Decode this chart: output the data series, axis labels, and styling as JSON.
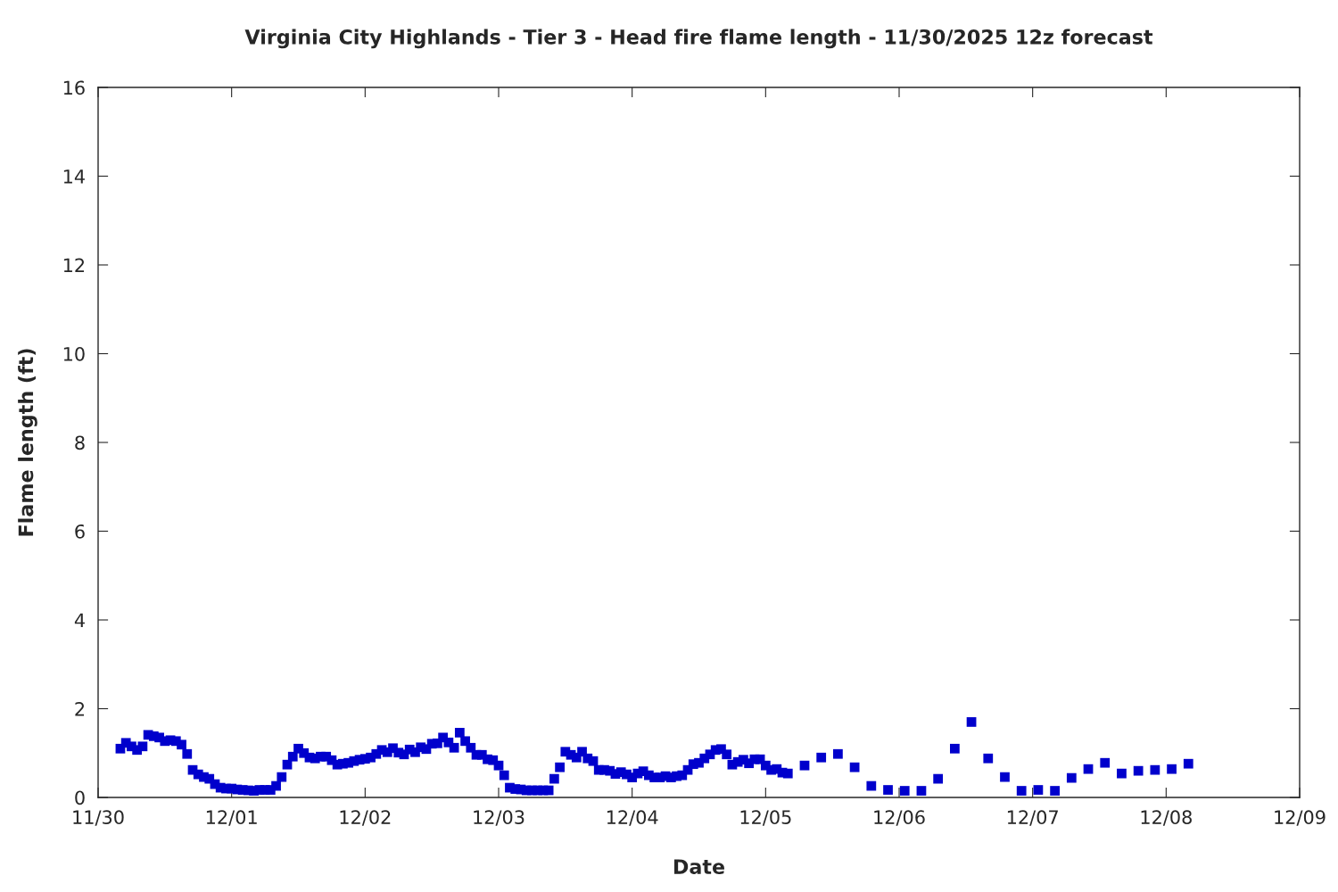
{
  "chart_data": {
    "type": "scatter",
    "title": "Virginia City Highlands - Tier 3 - Head fire flame length - 11/30/2025 12z forecast",
    "xlabel": "Date",
    "ylabel": "Flame length (ft)",
    "xlim": [
      "2025-11-30",
      "2025-12-09"
    ],
    "ylim": [
      0,
      16
    ],
    "yticks": [
      0,
      2,
      4,
      6,
      8,
      10,
      12,
      14,
      16
    ],
    "xticks": [
      {
        "value": "2025-11-30",
        "label": "11/30"
      },
      {
        "value": "2025-12-01",
        "label": "12/01"
      },
      {
        "value": "2025-12-02",
        "label": "12/02"
      },
      {
        "value": "2025-12-03",
        "label": "12/03"
      },
      {
        "value": "2025-12-04",
        "label": "12/04"
      },
      {
        "value": "2025-12-05",
        "label": "12/05"
      },
      {
        "value": "2025-12-06",
        "label": "12/06"
      },
      {
        "value": "2025-12-07",
        "label": "12/07"
      },
      {
        "value": "2025-12-08",
        "label": "12/08"
      },
      {
        "value": "2025-12-09",
        "label": "12/09"
      }
    ],
    "grid": false,
    "marker": "square",
    "series": [
      {
        "color": "#0000cc",
        "x": [
          "2025-11-30T04:00",
          "2025-11-30T05:00",
          "2025-11-30T06:00",
          "2025-11-30T07:00",
          "2025-11-30T08:00",
          "2025-11-30T09:00",
          "2025-11-30T10:00",
          "2025-11-30T11:00",
          "2025-11-30T12:00",
          "2025-11-30T13:00",
          "2025-11-30T14:00",
          "2025-11-30T15:00",
          "2025-11-30T16:00",
          "2025-11-30T17:00",
          "2025-11-30T18:00",
          "2025-11-30T19:00",
          "2025-11-30T20:00",
          "2025-11-30T21:00",
          "2025-11-30T22:00",
          "2025-11-30T23:00",
          "2025-12-01T00:00",
          "2025-12-01T01:00",
          "2025-12-01T02:00",
          "2025-12-01T03:00",
          "2025-12-01T04:00",
          "2025-12-01T05:00",
          "2025-12-01T06:00",
          "2025-12-01T07:00",
          "2025-12-01T08:00",
          "2025-12-01T09:00",
          "2025-12-01T10:00",
          "2025-12-01T11:00",
          "2025-12-01T12:00",
          "2025-12-01T13:00",
          "2025-12-01T14:00",
          "2025-12-01T15:00",
          "2025-12-01T16:00",
          "2025-12-01T17:00",
          "2025-12-01T18:00",
          "2025-12-01T19:00",
          "2025-12-01T20:00",
          "2025-12-01T21:00",
          "2025-12-01T22:00",
          "2025-12-01T23:00",
          "2025-12-02T00:00",
          "2025-12-02T01:00",
          "2025-12-02T02:00",
          "2025-12-02T03:00",
          "2025-12-02T04:00",
          "2025-12-02T05:00",
          "2025-12-02T06:00",
          "2025-12-02T07:00",
          "2025-12-02T08:00",
          "2025-12-02T09:00",
          "2025-12-02T10:00",
          "2025-12-02T11:00",
          "2025-12-02T12:00",
          "2025-12-02T13:00",
          "2025-12-02T14:00",
          "2025-12-02T15:00",
          "2025-12-02T16:00",
          "2025-12-02T17:00",
          "2025-12-02T18:00",
          "2025-12-02T19:00",
          "2025-12-02T20:00",
          "2025-12-02T21:00",
          "2025-12-02T22:00",
          "2025-12-02T23:00",
          "2025-12-03T00:00",
          "2025-12-03T01:00",
          "2025-12-03T02:00",
          "2025-12-03T03:00",
          "2025-12-03T04:00",
          "2025-12-03T05:00",
          "2025-12-03T06:00",
          "2025-12-03T07:00",
          "2025-12-03T08:00",
          "2025-12-03T09:00",
          "2025-12-03T10:00",
          "2025-12-03T11:00",
          "2025-12-03T12:00",
          "2025-12-03T13:00",
          "2025-12-03T14:00",
          "2025-12-03T15:00",
          "2025-12-03T16:00",
          "2025-12-03T17:00",
          "2025-12-03T18:00",
          "2025-12-03T19:00",
          "2025-12-03T20:00",
          "2025-12-03T21:00",
          "2025-12-03T22:00",
          "2025-12-03T23:00",
          "2025-12-04T00:00",
          "2025-12-04T01:00",
          "2025-12-04T02:00",
          "2025-12-04T03:00",
          "2025-12-04T04:00",
          "2025-12-04T05:00",
          "2025-12-04T06:00",
          "2025-12-04T07:00",
          "2025-12-04T08:00",
          "2025-12-04T09:00",
          "2025-12-04T10:00",
          "2025-12-04T11:00",
          "2025-12-04T12:00",
          "2025-12-04T13:00",
          "2025-12-04T14:00",
          "2025-12-04T15:00",
          "2025-12-04T16:00",
          "2025-12-04T17:00",
          "2025-12-04T18:00",
          "2025-12-04T19:00",
          "2025-12-04T20:00",
          "2025-12-04T21:00",
          "2025-12-04T22:00",
          "2025-12-04T23:00",
          "2025-12-05T00:00",
          "2025-12-05T01:00",
          "2025-12-05T02:00",
          "2025-12-05T03:00",
          "2025-12-05T04:00",
          "2025-12-05T07:00",
          "2025-12-05T10:00",
          "2025-12-05T13:00",
          "2025-12-05T16:00",
          "2025-12-05T19:00",
          "2025-12-05T22:00",
          "2025-12-06T01:00",
          "2025-12-06T04:00",
          "2025-12-06T07:00",
          "2025-12-06T10:00",
          "2025-12-06T13:00",
          "2025-12-06T16:00",
          "2025-12-06T19:00",
          "2025-12-06T22:00",
          "2025-12-07T01:00",
          "2025-12-07T04:00",
          "2025-12-07T07:00",
          "2025-12-07T10:00",
          "2025-12-07T13:00",
          "2025-12-07T16:00",
          "2025-12-07T19:00",
          "2025-12-07T22:00",
          "2025-12-08T01:00",
          "2025-12-08T04:00"
        ],
        "values": [
          1.1,
          1.23,
          1.15,
          1.07,
          1.15,
          1.41,
          1.38,
          1.35,
          1.27,
          1.29,
          1.27,
          1.19,
          0.98,
          0.62,
          0.52,
          0.46,
          0.42,
          0.3,
          0.22,
          0.2,
          0.2,
          0.18,
          0.17,
          0.16,
          0.15,
          0.17,
          0.17,
          0.17,
          0.26,
          0.46,
          0.74,
          0.92,
          1.1,
          1.0,
          0.9,
          0.88,
          0.92,
          0.92,
          0.84,
          0.74,
          0.76,
          0.78,
          0.82,
          0.85,
          0.87,
          0.9,
          0.98,
          1.07,
          1.02,
          1.11,
          1.01,
          0.97,
          1.08,
          1.02,
          1.13,
          1.09,
          1.21,
          1.22,
          1.35,
          1.24,
          1.12,
          1.46,
          1.27,
          1.12,
          0.96,
          0.96,
          0.86,
          0.84,
          0.72,
          0.5,
          0.22,
          0.19,
          0.18,
          0.16,
          0.16,
          0.16,
          0.16,
          0.16,
          0.42,
          0.68,
          1.03,
          0.96,
          0.9,
          1.03,
          0.88,
          0.82,
          0.62,
          0.62,
          0.6,
          0.53,
          0.57,
          0.52,
          0.45,
          0.54,
          0.59,
          0.5,
          0.45,
          0.45,
          0.48,
          0.45,
          0.48,
          0.5,
          0.62,
          0.75,
          0.78,
          0.88,
          0.97,
          1.07,
          1.09,
          0.97,
          0.74,
          0.8,
          0.85,
          0.77,
          0.86,
          0.86,
          0.72,
          0.62,
          0.64,
          0.56,
          0.54,
          0.72,
          0.9,
          0.98,
          0.68,
          0.26,
          0.17,
          0.15,
          0.15,
          0.42,
          1.1,
          1.7,
          0.88,
          0.46,
          0.15,
          0.17,
          0.15,
          0.44,
          0.64,
          0.78,
          0.54,
          0.6,
          0.62,
          0.64,
          0.76
        ]
      }
    ]
  }
}
